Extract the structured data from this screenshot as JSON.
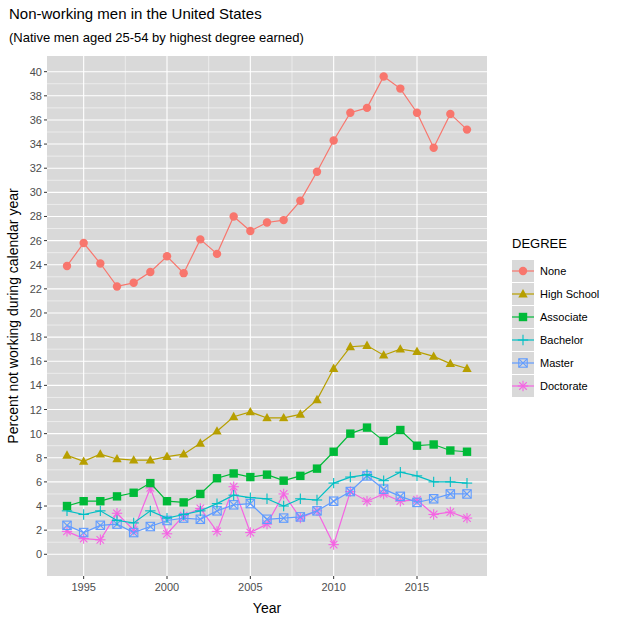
{
  "chart_data": {
    "type": "line",
    "title": "Non-working men in the United States",
    "subtitle": "(Native men aged 25-54 by highest degree earned)",
    "x_label": "Year",
    "y_label": "Percent not working during calendar year",
    "legend_title": "DEGREE",
    "legend": "right",
    "grid": true,
    "x": [
      1994,
      1995,
      1996,
      1997,
      1998,
      1999,
      2000,
      2001,
      2002,
      2003,
      2004,
      2005,
      2006,
      2007,
      2008,
      2009,
      2010,
      2011,
      2012,
      2013,
      2014,
      2015,
      2016,
      2017,
      2018
    ],
    "xlim": [
      1992.8,
      2019.2
    ],
    "xticks": [
      1995,
      2000,
      2005,
      2010,
      2015
    ],
    "ylim": [
      -1.8,
      41.3
    ],
    "yticks": [
      0,
      2,
      4,
      6,
      8,
      10,
      12,
      14,
      16,
      18,
      20,
      22,
      24,
      26,
      28,
      30,
      32,
      34,
      36,
      38,
      40
    ],
    "series": [
      {
        "name": "None",
        "color": "#F8766D",
        "marker": "circle",
        "values": [
          23.9,
          25.8,
          24.1,
          22.2,
          22.5,
          23.4,
          24.7,
          23.3,
          26.1,
          24.9,
          28.0,
          26.8,
          27.5,
          27.7,
          29.3,
          31.7,
          34.3,
          36.6,
          37.0,
          39.6,
          38.6,
          36.6,
          33.7,
          36.5,
          35.2
        ]
      },
      {
        "name": "High School",
        "color": "#B79F00",
        "marker": "triangle",
        "values": [
          8.2,
          7.7,
          8.3,
          7.9,
          7.8,
          7.8,
          8.1,
          8.3,
          9.2,
          10.2,
          11.4,
          11.8,
          11.3,
          11.3,
          11.6,
          12.8,
          15.4,
          17.2,
          17.3,
          16.5,
          17.0,
          16.8,
          16.4,
          15.8,
          15.4
        ]
      },
      {
        "name": "Associate",
        "color": "#00BA38",
        "marker": "square",
        "values": [
          4.0,
          4.4,
          4.4,
          4.8,
          5.1,
          5.9,
          4.4,
          4.3,
          5.0,
          6.3,
          6.7,
          6.4,
          6.6,
          6.1,
          6.5,
          7.1,
          8.5,
          10.0,
          10.5,
          9.4,
          10.3,
          9.0,
          9.1,
          8.6,
          8.5
        ]
      },
      {
        "name": "Bachelor",
        "color": "#00BFC4",
        "marker": "plus",
        "values": [
          3.6,
          3.3,
          3.6,
          2.8,
          2.6,
          3.6,
          3.0,
          3.3,
          3.6,
          4.2,
          4.9,
          4.7,
          4.6,
          4.0,
          4.6,
          4.5,
          5.9,
          6.4,
          6.6,
          6.1,
          6.8,
          6.5,
          6.0,
          6.0,
          5.9
        ]
      },
      {
        "name": "Master",
        "color": "#619CFF",
        "marker": "square-cross",
        "values": [
          2.4,
          1.8,
          2.4,
          2.5,
          1.8,
          2.3,
          2.8,
          3.0,
          2.9,
          3.6,
          4.1,
          4.2,
          2.9,
          3.0,
          3.1,
          3.6,
          4.4,
          5.2,
          6.5,
          5.4,
          4.8,
          4.3,
          4.6,
          5.0,
          5.0
        ]
      },
      {
        "name": "Doctorate",
        "color": "#F564E3",
        "marker": "asterisk",
        "values": [
          1.9,
          1.3,
          1.2,
          3.4,
          2.0,
          5.5,
          1.7,
          3.2,
          3.8,
          1.9,
          5.6,
          1.8,
          2.5,
          5.0,
          3.0,
          3.6,
          0.8,
          5.2,
          4.4,
          5.0,
          4.4,
          4.5,
          3.3,
          3.5,
          3.0
        ]
      }
    ]
  }
}
